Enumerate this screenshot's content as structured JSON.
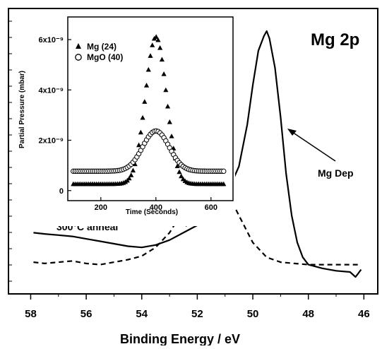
{
  "chart_data": [
    {
      "type": "line",
      "panel_label": "Mg 2p",
      "xlabel": "Binding Energy / eV",
      "ylabel": "",
      "xlim": [
        58.8,
        45.5
      ],
      "x_reversed": true,
      "x_ticks": [
        58,
        56,
        54,
        52,
        50,
        48,
        46
      ],
      "y_ticks_labeled": false,
      "grid": false,
      "series": [
        {
          "name": "Mg Dep",
          "style": "solid",
          "x": [
            57.9,
            57.5,
            57.0,
            56.5,
            56.0,
            55.5,
            55.0,
            54.5,
            54.0,
            53.5,
            53.0,
            52.5,
            52.0,
            51.5,
            51.0,
            50.5,
            50.2,
            50.0,
            49.8,
            49.6,
            49.5,
            49.4,
            49.2,
            49.0,
            48.8,
            48.6,
            48.4,
            48.2,
            48.0,
            47.5,
            47.0,
            46.5,
            46.3,
            46.1
          ],
          "y": [
            0.18,
            0.175,
            0.17,
            0.165,
            0.155,
            0.145,
            0.135,
            0.125,
            0.12,
            0.13,
            0.15,
            0.18,
            0.21,
            0.25,
            0.32,
            0.45,
            0.62,
            0.78,
            0.92,
            0.98,
            1.0,
            0.97,
            0.85,
            0.65,
            0.42,
            0.25,
            0.14,
            0.08,
            0.05,
            0.035,
            0.025,
            0.02,
            0.0,
            0.03
          ]
        },
        {
          "name": "300°C anneal",
          "style": "dashed",
          "x": [
            57.9,
            57.5,
            57.0,
            56.5,
            56.0,
            55.5,
            55.0,
            54.5,
            54.0,
            53.5,
            53.0,
            52.5,
            52.0,
            51.5,
            51.2,
            51.0,
            50.5,
            50.0,
            49.5,
            49.0,
            48.5,
            48.0,
            47.5,
            47.0,
            46.5,
            46.2
          ],
          "y": [
            0.06,
            0.055,
            0.06,
            0.065,
            0.055,
            0.05,
            0.06,
            0.07,
            0.085,
            0.12,
            0.18,
            0.27,
            0.35,
            0.39,
            0.385,
            0.36,
            0.25,
            0.14,
            0.08,
            0.06,
            0.055,
            0.05,
            0.05,
            0.05,
            0.05,
            0.05
          ]
        }
      ],
      "annotations": [
        "Mg Dep",
        "300°C anneal"
      ]
    },
    {
      "type": "scatter",
      "ylabel": "Partial Pressure (mbar)",
      "xlabel": "Time (Seconds)",
      "xlim": [
        80,
        680
      ],
      "ylim": [
        -4e-10,
        6.9e-09
      ],
      "x_ticks": [
        200,
        400,
        600
      ],
      "y_ticks": [
        {
          "value": 0,
          "label": "0"
        },
        {
          "value": 2e-09,
          "label": "2x10⁻⁹"
        },
        {
          "value": 4e-09,
          "label": "4x10⁻⁹"
        },
        {
          "value": 6e-09,
          "label": "6x10⁻⁹"
        }
      ],
      "legend_position": "top-left",
      "series": [
        {
          "name": "Mg (24)",
          "marker": "filled-triangle",
          "peak_x": 400,
          "peak_y": 6.1e-09,
          "baseline": 2.5e-10,
          "width": 38
        },
        {
          "name": "MgO (40)",
          "marker": "open-circle",
          "peak_x": 400,
          "peak_y": 2.4e-09,
          "baseline": 8e-10,
          "width": 48
        }
      ]
    }
  ]
}
